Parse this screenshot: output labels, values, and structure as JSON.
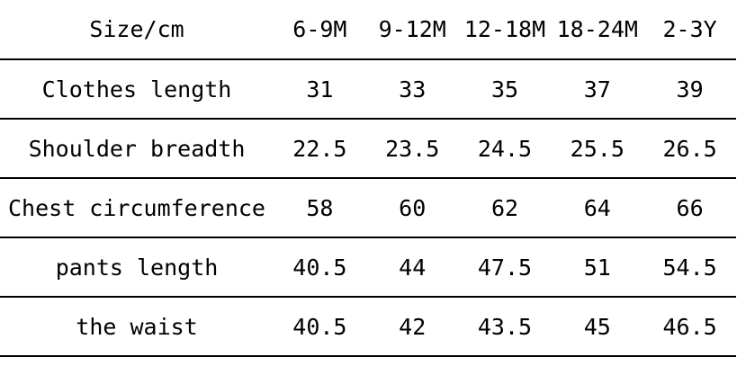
{
  "page": {
    "background_color": "#ffffff",
    "text_color": "#000000",
    "line_color": "#000000"
  },
  "chart_data": {
    "type": "table",
    "title": "Size/cm",
    "unit": "cm",
    "columns": [
      "Size/cm",
      "6-9M",
      "9-12M",
      "12-18M",
      "18-24M",
      "2-3Y"
    ],
    "rows": [
      {
        "label": "Clothes length",
        "values": [
          31,
          33,
          35,
          37,
          39
        ]
      },
      {
        "label": "Shoulder breadth",
        "values": [
          22.5,
          23.5,
          24.5,
          25.5,
          26.5
        ]
      },
      {
        "label": "Chest circumference",
        "values": [
          58,
          60,
          62,
          64,
          66
        ]
      },
      {
        "label": "pants length",
        "values": [
          40.5,
          44,
          47.5,
          51,
          54.5
        ]
      },
      {
        "label": "the waist",
        "values": [
          40.5,
          42,
          43.5,
          45,
          46.5
        ]
      }
    ]
  }
}
